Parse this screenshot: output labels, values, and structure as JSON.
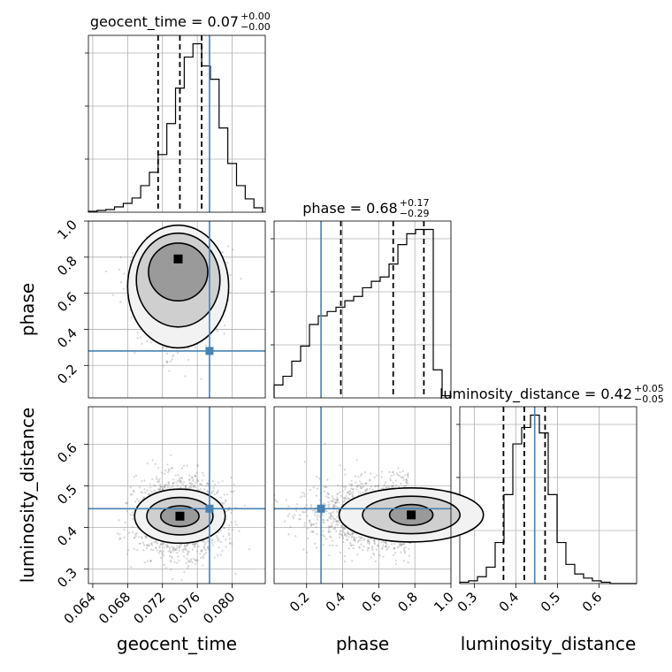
{
  "chart_data": {
    "type": "corner",
    "parameters": [
      "geocent_time",
      "phase",
      "luminosity_distance"
    ],
    "truths": {
      "geocent_time": 0.0774,
      "phase": 0.28,
      "luminosity_distance": 0.445
    },
    "titles": [
      {
        "param": "geocent_time",
        "text": "geocent_time = 0.07",
        "plus": "+0.00",
        "minus": "−0.00"
      },
      {
        "param": "phase",
        "text": "phase = 0.68",
        "plus": "+0.17",
        "minus": "−0.29"
      },
      {
        "param": "luminosity_distance",
        "text": "luminosity_distance = 0.42",
        "plus": "+0.05",
        "minus": "−0.05"
      }
    ],
    "axis_labels": {
      "x": [
        "geocent_time",
        "phase",
        "luminosity_distance"
      ],
      "y": [
        "phase",
        "luminosity_distance"
      ]
    },
    "ranges": {
      "geocent_time": [
        0.0635,
        0.0838
      ],
      "phase": [
        0.02,
        1.0
      ],
      "luminosity_distance": [
        0.265,
        0.69
      ]
    },
    "ticks": {
      "geocent_time": [
        "0.064",
        "0.068",
        "0.072",
        "0.076",
        "0.080"
      ],
      "phase": [
        "0.2",
        "0.4",
        "0.6",
        "0.8",
        "1.0"
      ],
      "luminosity_distance": [
        "0.3",
        "0.4",
        "0.5",
        "0.6"
      ]
    },
    "quantiles": {
      "geocent_time": [
        0.0715,
        0.074,
        0.0765
      ],
      "phase": [
        0.39,
        0.68,
        0.85
      ],
      "luminosity_distance": [
        0.37,
        0.42,
        0.47
      ]
    },
    "histograms": {
      "geocent_time": {
        "edges_start": 0.0635,
        "bin_width": 0.001,
        "counts": [
          1,
          2,
          3,
          6,
          10,
          16,
          30,
          45,
          65,
          100,
          140,
          175,
          190,
          165,
          150,
          95,
          55,
          30,
          15,
          5
        ]
      },
      "phase": {
        "edges_start": 0.02,
        "bin_width": 0.049,
        "counts": [
          6,
          10,
          17,
          24,
          34,
          38,
          40,
          42,
          45,
          47,
          51,
          54,
          56,
          62,
          71,
          76,
          78,
          78,
          13,
          1
        ]
      },
      "luminosity_distance": {
        "edges_start": 0.265,
        "bin_width": 0.02125,
        "counts": [
          1,
          2,
          5,
          12,
          30,
          65,
          102,
          114,
          123,
          110,
          65,
          30,
          14,
          7,
          4,
          2,
          1,
          0,
          0,
          0
        ]
      }
    },
    "grid": true
  }
}
